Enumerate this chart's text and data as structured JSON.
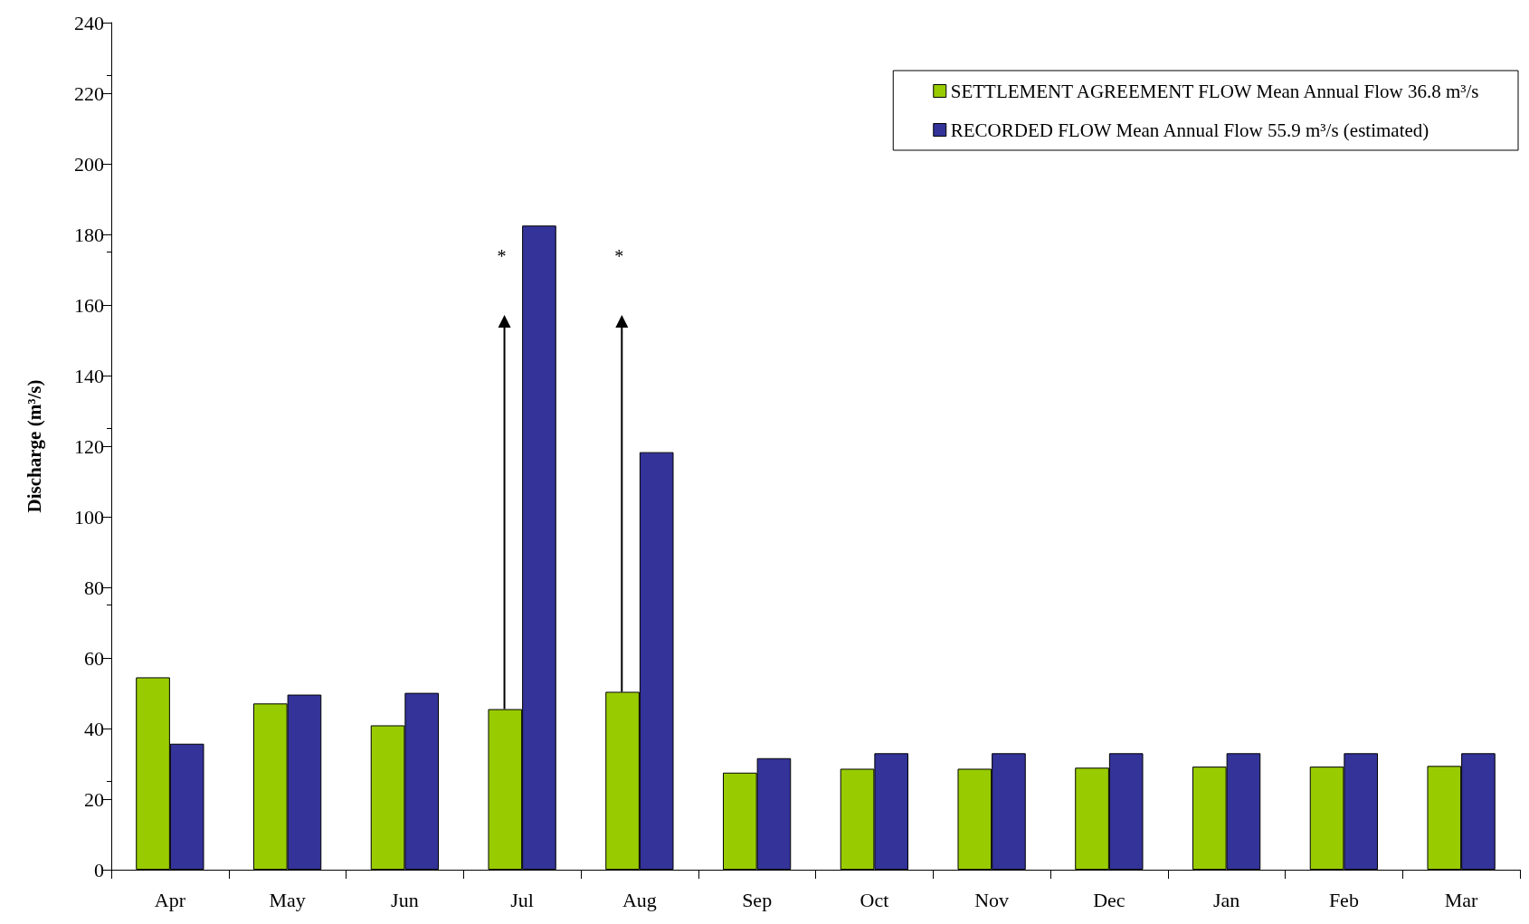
{
  "chart_data": {
    "type": "bar",
    "ylabel": "Discharge (m³/s)",
    "categories": [
      "Apr",
      "May",
      "Jun",
      "Jul",
      "Aug",
      "Sep",
      "Oct",
      "Nov",
      "Dec",
      "Jan",
      "Feb",
      "Mar"
    ],
    "series": [
      {
        "name": "SETTLEMENT AGREEMENT FLOW Mean Annual Flow 36.8 m³/s",
        "color": "#99cc00",
        "values": [
          54.5,
          47.1,
          40.9,
          45.5,
          50.4,
          27.5,
          28.6,
          28.6,
          28.9,
          29.2,
          29.2,
          29.4
        ]
      },
      {
        "name": "RECORDED FLOW Mean Annual Flow 55.9 m³/s (estimated)",
        "color": "#333399",
        "values": [
          35.7,
          49.6,
          50.1,
          182.5,
          118.3,
          31.6,
          33.0,
          33.0,
          33.0,
          33.0,
          33.0,
          33.0
        ]
      }
    ],
    "ylim": [
      0,
      240
    ],
    "yticks": [
      0,
      20,
      40,
      60,
      80,
      100,
      120,
      140,
      160,
      180,
      200,
      220,
      240
    ],
    "annotations": [
      "*",
      "*"
    ],
    "grid": false,
    "legend": "top right"
  }
}
